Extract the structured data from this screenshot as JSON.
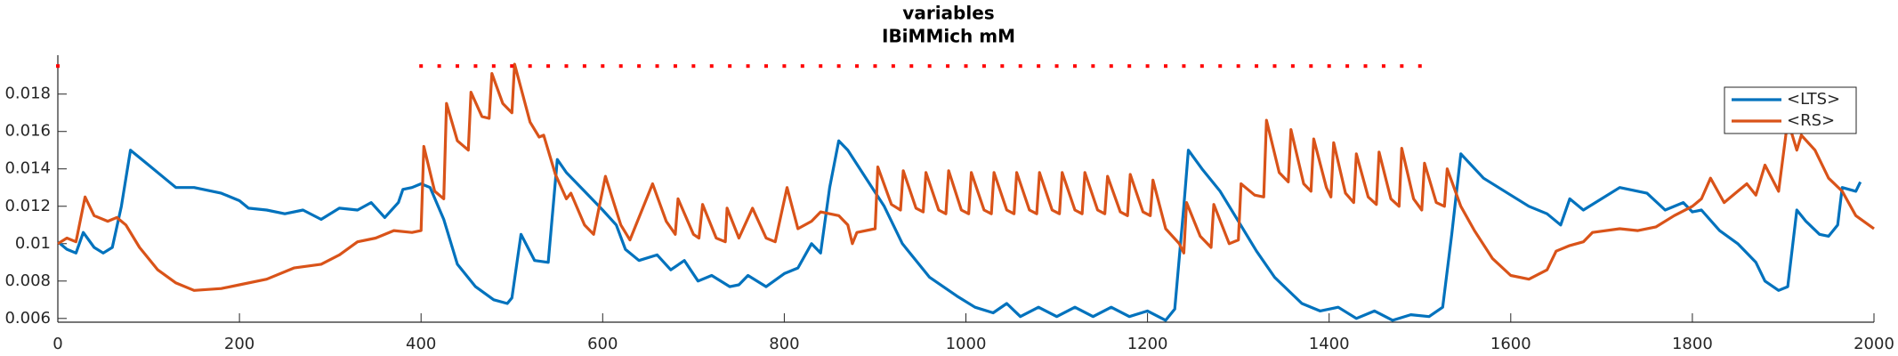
{
  "chart_data": {
    "type": "line",
    "title": "variables",
    "subtitle": "IBiMMich mM",
    "xlim": [
      0,
      2000
    ],
    "xticks": [
      0,
      200,
      400,
      600,
      800,
      1000,
      1200,
      1400,
      1600,
      1800,
      2000
    ],
    "ylim": [
      0.0058,
      0.0197
    ],
    "yticks": [
      0.006,
      0.008,
      0.01,
      0.012,
      0.014,
      0.016,
      0.018
    ],
    "grid": false,
    "legend": "northeast",
    "markers": {
      "color": "#ff0000",
      "x": [
        0,
        400,
        420,
        440,
        460,
        480,
        500,
        520,
        540,
        560,
        580,
        600,
        620,
        640,
        660,
        680,
        700,
        720,
        740,
        760,
        780,
        800,
        820,
        840,
        860,
        880,
        900,
        920,
        940,
        960,
        980,
        1000,
        1020,
        1040,
        1060,
        1080,
        1100,
        1120,
        1140,
        1160,
        1180,
        1200,
        1220,
        1240,
        1260,
        1280,
        1300,
        1320,
        1340,
        1360,
        1380,
        1400,
        1420,
        1440,
        1460,
        1480,
        1500
      ],
      "values": [
        0.0195,
        0.0195,
        0.0195,
        0.0195,
        0.0195,
        0.0195,
        0.0195,
        0.0195,
        0.0195,
        0.0195,
        0.0195,
        0.0195,
        0.0195,
        0.0195,
        0.0195,
        0.0195,
        0.0195,
        0.0195,
        0.0195,
        0.0195,
        0.0195,
        0.0195,
        0.0195,
        0.0195,
        0.0195,
        0.0195,
        0.0195,
        0.0195,
        0.0195,
        0.0195,
        0.0195,
        0.0195,
        0.0195,
        0.0195,
        0.0195,
        0.0195,
        0.0195,
        0.0195,
        0.0195,
        0.0195,
        0.0195,
        0.0195,
        0.0195,
        0.0195,
        0.0195,
        0.0195,
        0.0195,
        0.0195,
        0.0195,
        0.0195,
        0.0195,
        0.0195,
        0.0195,
        0.0195,
        0.0195,
        0.0195,
        0.0195
      ]
    },
    "series": [
      {
        "name": "<LTS>",
        "color": "#0072bd",
        "x": [
          0,
          10,
          20,
          28,
          40,
          50,
          60,
          70,
          80,
          100,
          120,
          130,
          150,
          180,
          200,
          210,
          230,
          250,
          270,
          290,
          310,
          330,
          345,
          360,
          375,
          380,
          390,
          400,
          410,
          425,
          440,
          460,
          480,
          495,
          500,
          510,
          525,
          540,
          550,
          560,
          580,
          600,
          615,
          625,
          640,
          660,
          675,
          690,
          705,
          720,
          740,
          750,
          760,
          780,
          800,
          815,
          830,
          840,
          850,
          860,
          870,
          890,
          910,
          930,
          960,
          990,
          1010,
          1030,
          1045,
          1060,
          1080,
          1100,
          1120,
          1140,
          1160,
          1180,
          1200,
          1220,
          1230,
          1240,
          1245,
          1260,
          1280,
          1300,
          1320,
          1340,
          1370,
          1390,
          1410,
          1430,
          1450,
          1470,
          1490,
          1510,
          1525,
          1535,
          1545,
          1570,
          1600,
          1620,
          1640,
          1655,
          1665,
          1680,
          1700,
          1720,
          1750,
          1770,
          1790,
          1800,
          1810,
          1830,
          1850,
          1870,
          1880,
          1895,
          1905,
          1915,
          1925,
          1940,
          1950,
          1960,
          1965,
          1980,
          1985
        ],
        "values": [
          0.0101,
          0.0097,
          0.0095,
          0.0106,
          0.0098,
          0.0095,
          0.0098,
          0.012,
          0.015,
          0.0142,
          0.0134,
          0.013,
          0.013,
          0.0127,
          0.0123,
          0.0119,
          0.0118,
          0.0116,
          0.0118,
          0.0113,
          0.0119,
          0.0118,
          0.0122,
          0.0114,
          0.0122,
          0.0129,
          0.013,
          0.0132,
          0.013,
          0.0113,
          0.0089,
          0.0077,
          0.007,
          0.0068,
          0.0071,
          0.0105,
          0.0091,
          0.009,
          0.0145,
          0.0138,
          0.0128,
          0.0118,
          0.011,
          0.0097,
          0.0091,
          0.0094,
          0.0086,
          0.0091,
          0.008,
          0.0083,
          0.0077,
          0.0078,
          0.0083,
          0.0077,
          0.0084,
          0.0087,
          0.01,
          0.0095,
          0.013,
          0.0155,
          0.015,
          0.0135,
          0.012,
          0.01,
          0.0082,
          0.0072,
          0.0066,
          0.0063,
          0.0068,
          0.0061,
          0.0066,
          0.0061,
          0.0066,
          0.0061,
          0.0066,
          0.0061,
          0.0064,
          0.0059,
          0.0065,
          0.012,
          0.015,
          0.014,
          0.0128,
          0.0112,
          0.0096,
          0.0082,
          0.0068,
          0.0064,
          0.0066,
          0.006,
          0.0064,
          0.0059,
          0.0062,
          0.0061,
          0.0066,
          0.0105,
          0.0148,
          0.0135,
          0.0126,
          0.012,
          0.0116,
          0.011,
          0.0124,
          0.0118,
          0.0124,
          0.013,
          0.0127,
          0.0118,
          0.0122,
          0.0117,
          0.0118,
          0.0107,
          0.01,
          0.009,
          0.008,
          0.0075,
          0.0077,
          0.0118,
          0.0112,
          0.0105,
          0.0104,
          0.011,
          0.013,
          0.0128,
          0.0133
        ]
      },
      {
        "name": "<RS>",
        "color": "#d95319",
        "x": [
          0,
          10,
          20,
          30,
          40,
          55,
          65,
          75,
          90,
          110,
          130,
          150,
          180,
          200,
          230,
          260,
          290,
          310,
          330,
          350,
          370,
          390,
          400,
          403,
          415,
          425,
          428,
          440,
          452,
          455,
          467,
          475,
          478,
          490,
          500,
          503,
          520,
          530,
          535,
          548,
          560,
          565,
          580,
          590,
          603,
          620,
          630,
          655,
          670,
          680,
          683,
          700,
          706,
          710,
          725,
          735,
          737,
          750,
          765,
          780,
          790,
          803,
          815,
          830,
          840,
          860,
          870,
          875,
          880,
          900,
          903,
          918,
          928,
          931,
          945,
          953,
          956,
          970,
          978,
          981,
          995,
          1003,
          1006,
          1020,
          1028,
          1031,
          1045,
          1053,
          1056,
          1070,
          1078,
          1081,
          1095,
          1103,
          1106,
          1120,
          1128,
          1131,
          1145,
          1153,
          1156,
          1170,
          1178,
          1181,
          1195,
          1203,
          1206,
          1220,
          1235,
          1240,
          1243,
          1258,
          1270,
          1273,
          1290,
          1300,
          1303,
          1318,
          1328,
          1331,
          1345,
          1355,
          1358,
          1372,
          1380,
          1383,
          1397,
          1402,
          1405,
          1418,
          1427,
          1430,
          1443,
          1452,
          1455,
          1468,
          1477,
          1480,
          1493,
          1502,
          1505,
          1518,
          1527,
          1530,
          1545,
          1560,
          1580,
          1600,
          1620,
          1640,
          1650,
          1665,
          1680,
          1690,
          1720,
          1740,
          1760,
          1780,
          1800,
          1810,
          1820,
          1835,
          1850,
          1860,
          1870,
          1880,
          1895,
          1905,
          1915,
          1920,
          1935,
          1950,
          1965,
          1980,
          2000
        ],
        "values": [
          0.01,
          0.0103,
          0.0101,
          0.0125,
          0.0115,
          0.0112,
          0.0114,
          0.011,
          0.0098,
          0.0086,
          0.0079,
          0.0075,
          0.0076,
          0.0078,
          0.0081,
          0.0087,
          0.0089,
          0.0094,
          0.0101,
          0.0103,
          0.0107,
          0.0106,
          0.0107,
          0.0152,
          0.0128,
          0.0124,
          0.0175,
          0.0155,
          0.015,
          0.0181,
          0.0168,
          0.0167,
          0.0191,
          0.0175,
          0.017,
          0.0196,
          0.0165,
          0.0157,
          0.0158,
          0.0137,
          0.0124,
          0.0127,
          0.011,
          0.0105,
          0.0136,
          0.011,
          0.0102,
          0.0132,
          0.0112,
          0.0105,
          0.0124,
          0.0105,
          0.0103,
          0.0121,
          0.0103,
          0.0101,
          0.0119,
          0.0103,
          0.0119,
          0.0103,
          0.0101,
          0.013,
          0.0108,
          0.0112,
          0.0117,
          0.0115,
          0.011,
          0.01,
          0.0106,
          0.0108,
          0.0141,
          0.0121,
          0.0118,
          0.0139,
          0.0119,
          0.0117,
          0.0138,
          0.0118,
          0.0116,
          0.0139,
          0.0118,
          0.0116,
          0.0138,
          0.0118,
          0.0116,
          0.0138,
          0.0118,
          0.0116,
          0.0138,
          0.0118,
          0.0116,
          0.0138,
          0.0118,
          0.0116,
          0.0138,
          0.0118,
          0.0116,
          0.0138,
          0.0118,
          0.0116,
          0.0136,
          0.0117,
          0.0115,
          0.0137,
          0.0117,
          0.0115,
          0.0134,
          0.0108,
          0.01,
          0.0095,
          0.0122,
          0.0104,
          0.0098,
          0.0121,
          0.01,
          0.0102,
          0.0132,
          0.0126,
          0.0125,
          0.0166,
          0.0138,
          0.0133,
          0.0161,
          0.0132,
          0.0128,
          0.0156,
          0.013,
          0.0125,
          0.0154,
          0.0127,
          0.0122,
          0.0148,
          0.0125,
          0.0121,
          0.0149,
          0.0124,
          0.012,
          0.0151,
          0.0124,
          0.0118,
          0.0143,
          0.0122,
          0.012,
          0.014,
          0.012,
          0.0107,
          0.0092,
          0.0083,
          0.0081,
          0.0086,
          0.0096,
          0.0099,
          0.0101,
          0.0106,
          0.0108,
          0.0107,
          0.0109,
          0.0115,
          0.012,
          0.0124,
          0.0135,
          0.0122,
          0.0128,
          0.0132,
          0.0126,
          0.0142,
          0.0128,
          0.0166,
          0.015,
          0.0158,
          0.015,
          0.0135,
          0.0128,
          0.0115,
          0.0108
        ]
      }
    ]
  }
}
